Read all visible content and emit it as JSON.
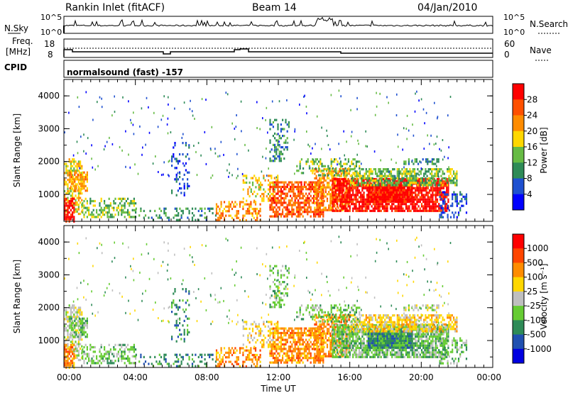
{
  "header": {
    "station": "Rankin Inlet (fitACF)",
    "beam": "Beam 14",
    "date": "04/Jan/2010"
  },
  "noise_panel": {
    "left_label": "N.Sky",
    "right_label": "N.Search",
    "right_style": "dotted",
    "left_ticks": [
      "10^5",
      "10^0"
    ],
    "right_ticks": [
      "10^5",
      "10^0"
    ]
  },
  "freq_panel": {
    "left_label_1": "Freq.",
    "left_label_2": "[MHz]",
    "right_label": "Nave",
    "right_style": "dotted",
    "left_ticks": [
      "18",
      "8"
    ],
    "right_ticks": [
      "60",
      "0"
    ]
  },
  "cpid_panel": {
    "label": "CPID",
    "text": "normalsound (fast) -157"
  },
  "x_axis": {
    "ticks": [
      "00:00",
      "04:00",
      "08:00",
      "12:00",
      "16:00",
      "20:00",
      "00:00"
    ],
    "title": "Time UT"
  },
  "chart_data": [
    {
      "type": "heatmap",
      "name": "power",
      "x_range_hours": [
        0,
        24
      ],
      "ylabel": "Slant Range [km]",
      "ylim": [
        180,
        4500
      ],
      "yticks": [
        "4000",
        "3000",
        "2000",
        "1000"
      ],
      "colorbar_label": "Power [dB]",
      "colorbar_ticks": [
        "28",
        "24",
        "20",
        "16",
        "12",
        "8",
        "4"
      ],
      "colorbar_colors": [
        "#0000ff",
        "#1e50d0",
        "#2e8b57",
        "#66bb44",
        "#ffd700",
        "#ff8c00",
        "#ff5000",
        "#ff0000"
      ]
    },
    {
      "type": "heatmap",
      "name": "velocity",
      "x_range_hours": [
        0,
        24
      ],
      "ylabel": "Slant Range [km]",
      "ylim": [
        180,
        4500
      ],
      "yticks": [
        "4000",
        "3000",
        "2000",
        "1000"
      ],
      "colorbar_label": "Velocity [m s⁻¹]",
      "colorbar_ticks": [
        "1000",
        "500",
        "100",
        "25",
        "-25",
        "-100",
        "-500",
        "-1000"
      ],
      "colorbar_colors": [
        "#0000e0",
        "#2050b0",
        "#2e8b57",
        "#66cc33",
        "#bfbfbf",
        "#ffd700",
        "#ff8c00",
        "#ff4500",
        "#ff0000"
      ]
    }
  ]
}
